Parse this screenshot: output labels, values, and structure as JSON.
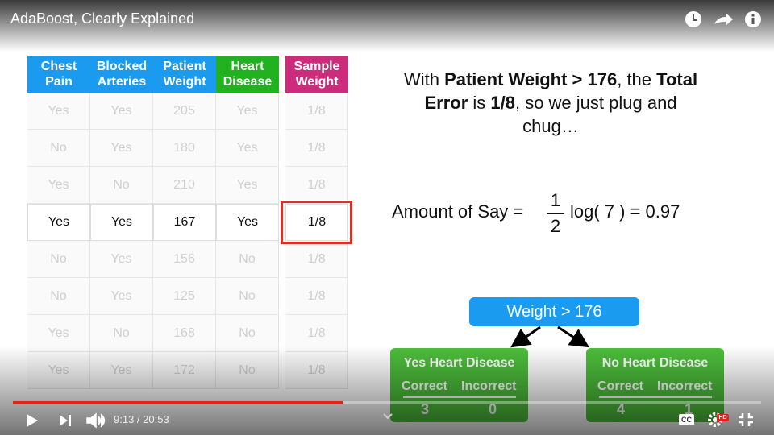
{
  "header": {
    "title": "AdaBoost, Clearly Explained"
  },
  "table": {
    "headers": [
      "Chest Pain",
      "Blocked Arteries",
      "Patient Weight",
      "Heart Disease",
      "Sample Weight"
    ],
    "header_colors": [
      "#1a9bf0",
      "#1a9bf0",
      "#1a9bf0",
      "#22b21f",
      "#cc2c7b"
    ],
    "rows": [
      [
        "Yes",
        "Yes",
        "205",
        "Yes",
        "1/8"
      ],
      [
        "No",
        "Yes",
        "180",
        "Yes",
        "1/8"
      ],
      [
        "Yes",
        "No",
        "210",
        "Yes",
        "1/8"
      ],
      [
        "Yes",
        "Yes",
        "167",
        "Yes",
        "1/8"
      ],
      [
        "No",
        "Yes",
        "156",
        "No",
        "1/8"
      ],
      [
        "No",
        "Yes",
        "125",
        "No",
        "1/8"
      ],
      [
        "Yes",
        "No",
        "168",
        "No",
        "1/8"
      ],
      [
        "Yes",
        "Yes",
        "172",
        "No",
        "1/8"
      ]
    ],
    "highlighted_row": 3
  },
  "explanation": {
    "lines": [
      [
        {
          "t": "With ",
          "b": false
        },
        {
          "t": "Patient Weight > 176",
          "b": true
        },
        {
          "t": ", the ",
          "b": false
        },
        {
          "t": "Total",
          "b": true
        }
      ],
      [
        {
          "t": "Error",
          "b": true
        },
        {
          "t": " is ",
          "b": false
        },
        {
          "t": "1/8",
          "b": true
        },
        {
          "t": ", so we just plug and",
          "b": false
        }
      ],
      [
        {
          "t": "chug…",
          "b": false
        }
      ]
    ]
  },
  "formula": {
    "lhs": "Amount of Say =",
    "numerator": "1",
    "denominator": "2",
    "rhs": "log( 7 ) = 0.97"
  },
  "tree": {
    "root": "Weight > 176",
    "leaves": [
      {
        "title": "Yes Heart Disease",
        "correct_label": "Correct",
        "incorrect_label": "Incorrect",
        "correct": "3",
        "incorrect": "0"
      },
      {
        "title": "No Heart Disease",
        "correct_label": "Correct",
        "incorrect_label": "Incorrect",
        "correct": "4",
        "incorrect": "1"
      }
    ]
  },
  "player": {
    "time": "9:13 / 20:53",
    "cc": "CC",
    "hd": "HD"
  }
}
